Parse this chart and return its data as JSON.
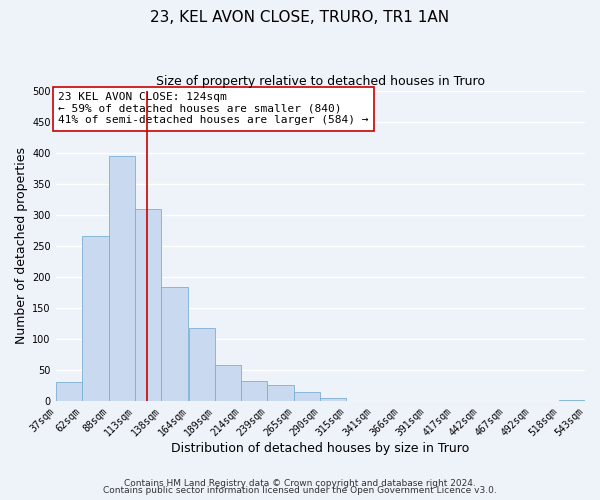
{
  "title": "23, KEL AVON CLOSE, TRURO, TR1 1AN",
  "subtitle": "Size of property relative to detached houses in Truro",
  "xlabel": "Distribution of detached houses by size in Truro",
  "ylabel": "Number of detached properties",
  "bar_left_edges": [
    37,
    62,
    88,
    113,
    138,
    164,
    189,
    214,
    239,
    265,
    290,
    315,
    341,
    366,
    391,
    417,
    442,
    467,
    492,
    518
  ],
  "bar_widths": [
    25,
    26,
    25,
    25,
    26,
    25,
    25,
    25,
    26,
    25,
    25,
    26,
    25,
    25,
    26,
    25,
    25,
    25,
    26,
    25
  ],
  "bar_heights": [
    30,
    265,
    395,
    310,
    183,
    117,
    58,
    32,
    26,
    15,
    5,
    0,
    0,
    0,
    0,
    0,
    0,
    0,
    0,
    2
  ],
  "bar_color": "#c9d9f0",
  "bar_edgecolor": "#7ab0d4",
  "x_tick_labels": [
    "37sqm",
    "62sqm",
    "88sqm",
    "113sqm",
    "138sqm",
    "164sqm",
    "189sqm",
    "214sqm",
    "239sqm",
    "265sqm",
    "290sqm",
    "315sqm",
    "341sqm",
    "366sqm",
    "391sqm",
    "417sqm",
    "442sqm",
    "467sqm",
    "492sqm",
    "518sqm",
    "543sqm"
  ],
  "ylim": [
    0,
    500
  ],
  "yticks": [
    0,
    50,
    100,
    150,
    200,
    250,
    300,
    350,
    400,
    450,
    500
  ],
  "vline_x": 124,
  "vline_color": "#cc0000",
  "annotation_line1": "23 KEL AVON CLOSE: 124sqm",
  "annotation_line2": "← 59% of detached houses are smaller (840)",
  "annotation_line3": "41% of semi-detached houses are larger (584) →",
  "annotation_box_edgecolor": "#cc0000",
  "annotation_box_facecolor": "white",
  "footer_line1": "Contains HM Land Registry data © Crown copyright and database right 2024.",
  "footer_line2": "Contains public sector information licensed under the Open Government Licence v3.0.",
  "background_color": "#eef2f9",
  "grid_color": "white",
  "title_fontsize": 11,
  "subtitle_fontsize": 9,
  "axis_label_fontsize": 9,
  "tick_fontsize": 7,
  "annotation_fontsize": 8,
  "footer_fontsize": 6.5
}
